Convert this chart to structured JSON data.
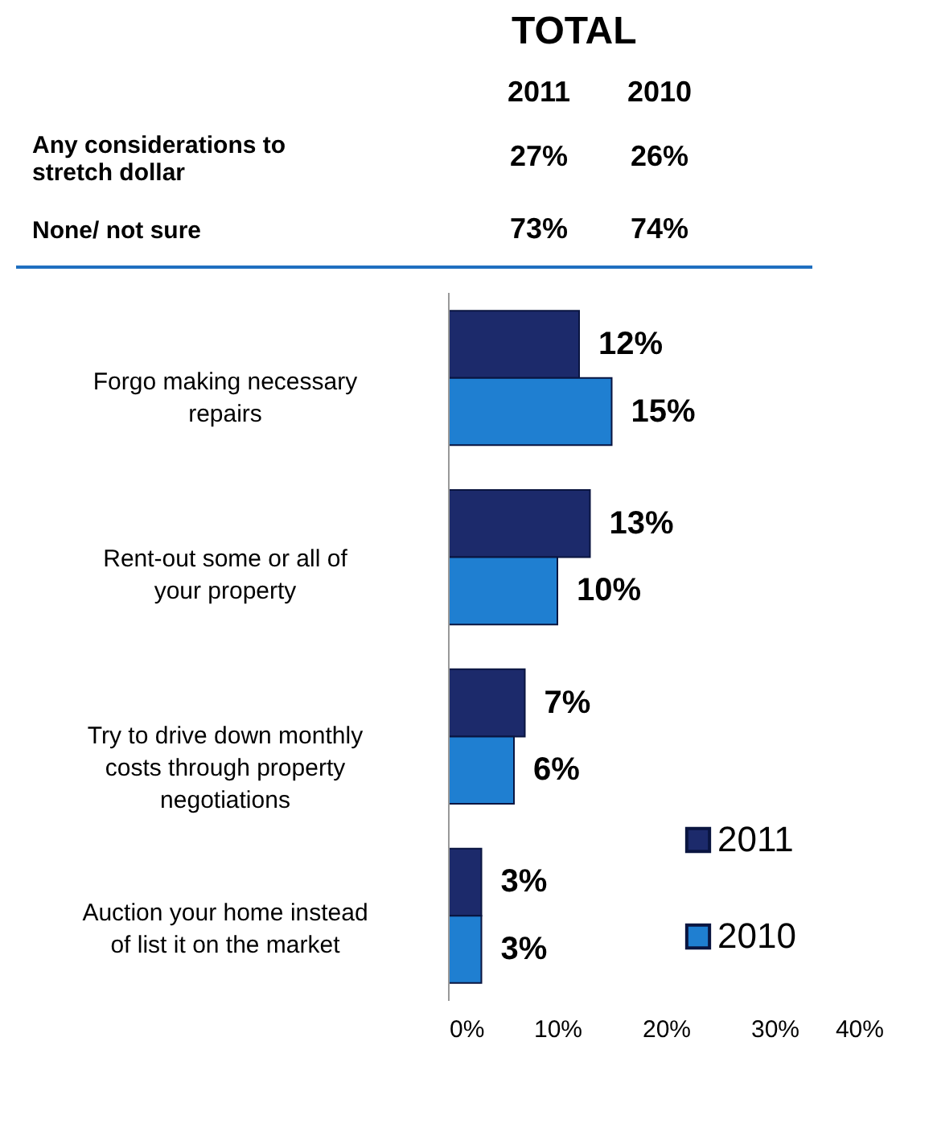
{
  "chart_data": {
    "type": "bar",
    "orientation": "horizontal",
    "title": "TOTAL",
    "annotations": [
      "2011",
      "2010",
      "Any considerations to stretch dollar",
      "27%",
      "26%",
      "None/ not sure",
      "73%",
      "74%"
    ],
    "categories": [
      "Forgo making necessary repairs",
      "Rent-out some or all of your property",
      "Try to drive down monthly costs through property negotiations",
      "Auction your home instead of list it on the market"
    ],
    "series": [
      {
        "name": "2011",
        "color": "#1c2a6b",
        "values": [
          12,
          13,
          7,
          3
        ],
        "value_labels": [
          "12%",
          "13%",
          "7%",
          "3%"
        ]
      },
      {
        "name": "2010",
        "color": "#1f7fd1",
        "values": [
          15,
          10,
          6,
          3
        ],
        "value_labels": [
          "15%",
          "10%",
          "6%",
          "3%"
        ]
      }
    ],
    "xlim": [
      0,
      40
    ],
    "xticks": [
      {
        "value": 0,
        "label": "0%"
      },
      {
        "value": 10,
        "label": "10%"
      },
      {
        "value": 20,
        "label": "20%"
      },
      {
        "value": 30,
        "label": "30%"
      },
      {
        "value": 40,
        "label": "40%"
      }
    ],
    "legend": "bottom right",
    "grid": false
  }
}
